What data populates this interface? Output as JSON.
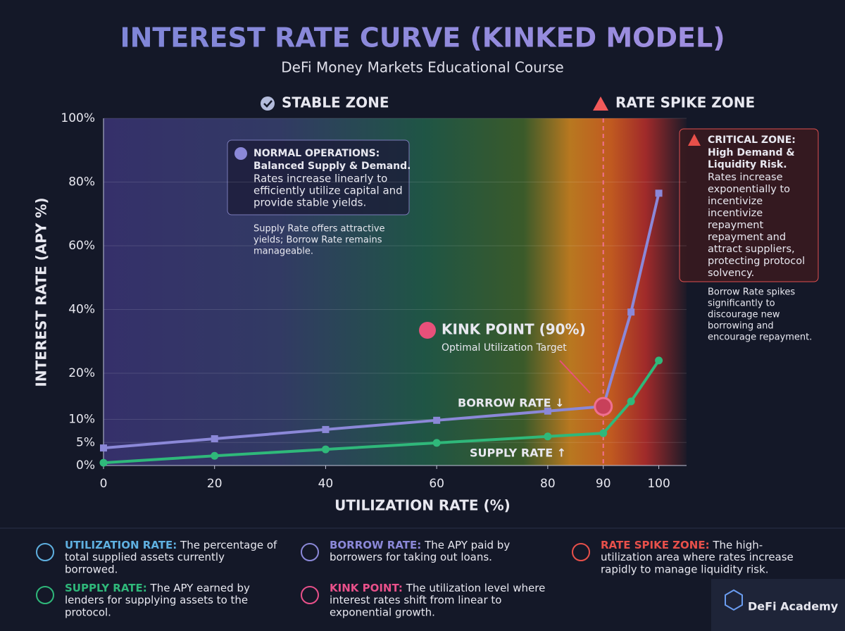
{
  "header": {
    "title": "INTEREST RATE CURVE (KINKED MODEL)",
    "subtitle": "DeFi Money Markets Educational Course"
  },
  "chart_data": {
    "type": "line",
    "zones": [
      {
        "label": "STABLE ZONE",
        "color": "#b4bcdc"
      },
      {
        "label": "RATE SPIKE ZONE",
        "color": "#f25a5a"
      }
    ],
    "x_label": "UTILIZATION RATE (%)",
    "y_label": "INTEREST RATE (APY %)",
    "x": [
      0,
      20,
      40,
      60,
      80,
      90,
      95,
      100
    ],
    "series": [
      {
        "name": "BORROW RATE ↓",
        "color": "#8b88d8",
        "marker": "square",
        "values": [
          3.8,
          5.8,
          7.8,
          9.8,
          11.8,
          12.8,
          39.2,
          76.5
        ]
      },
      {
        "name": "SUPPLY RATE ↑",
        "color": "#2fb87a",
        "marker": "circle",
        "values": [
          0.6,
          2.1,
          3.5,
          4.9,
          6.3,
          7.0,
          13.9,
          24.0
        ]
      }
    ],
    "xlim": [
      0,
      105
    ],
    "xticks": [
      0,
      20,
      40,
      60,
      80,
      90,
      100
    ],
    "ylim": [
      0,
      100
    ],
    "yticks": [
      {
        "value": 0,
        "label": "0%"
      },
      {
        "value": 5,
        "label": "5%"
      },
      {
        "value": 10,
        "label": "10%"
      },
      {
        "value": 20,
        "label": "20%"
      },
      {
        "value": 40,
        "label": "40%"
      },
      {
        "value": 60,
        "label": "60%"
      },
      {
        "value": 80,
        "label": "80%"
      },
      {
        "value": 100,
        "label": "100%"
      }
    ],
    "grid": true,
    "kink": {
      "x": 90,
      "label": "KINK POINT (90%)",
      "sublabel": "Optimal Utilization Target"
    },
    "annotations": {
      "normal": {
        "heading": "NORMAL OPERATIONS:",
        "bold": "Balanced Supply & Demand.",
        "lines": [
          "Rates increase linearly to",
          "efficiently utilize capital and",
          "provide stable yields."
        ]
      },
      "normal_note": [
        "Supply Rate offers attractive",
        "yields; Borrow Rate remains",
        "manageable."
      ],
      "critical": {
        "heading": "CRITICAL ZONE:",
        "bold": [
          "High Demand &",
          "Liquidity Risk."
        ],
        "lines": [
          "Rates increase",
          "exponentially to",
          "incentivize",
          "incentivize",
          "repayment",
          "repayment and",
          "attract suppliers,",
          "protecting protocol",
          "solvency."
        ]
      },
      "critical_note": [
        "Borrow Rate spikes",
        "significantly to",
        "discourage new",
        "borrowing and",
        "encourage repayment."
      ]
    }
  },
  "definitions": [
    {
      "term": "UTILIZATION RATE:",
      "color": "#5fb0e0",
      "lines": [
        "The percentage of",
        "total supplied assets currently",
        "borrowed."
      ]
    },
    {
      "term": "SUPPLY RATE:",
      "color": "#2fb87a",
      "lines": [
        "The APY earned by",
        "lenders for supplying assets to the",
        "protocol."
      ]
    },
    {
      "term": "BORROW RATE:",
      "color": "#8b88d8",
      "lines": [
        "The APY paid by",
        "borrowers for taking out loans."
      ]
    },
    {
      "term": "KINK POINT:",
      "color": "#e8508a",
      "lines": [
        "The utilization level where",
        "interest rates shift from linear to",
        "exponential growth."
      ]
    },
    {
      "term": "RATE SPIKE ZONE:",
      "color": "#e8504a",
      "lines": [
        "The high-",
        "utilization area where rates increase",
        "rapidly to manage liquidity risk."
      ]
    }
  ],
  "brand": "DeFi Academy"
}
